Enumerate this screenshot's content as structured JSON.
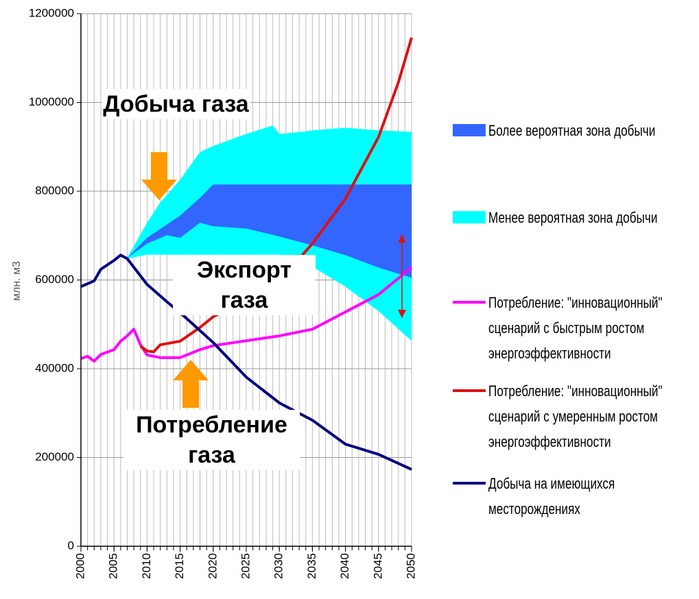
{
  "chart_data": {
    "type": "line",
    "y_label": "млн. м3",
    "xlim": [
      2000,
      2050
    ],
    "xticks": [
      2000,
      2005,
      2010,
      2015,
      2020,
      2025,
      2030,
      2035,
      2040,
      2045,
      2050
    ],
    "ylim": [
      0,
      1200000
    ],
    "yticks": [
      0,
      200000,
      400000,
      600000,
      800000,
      1000000,
      1200000
    ],
    "grid": true,
    "annotations": [
      "Добыча газа",
      "Экспорт газа",
      "Потребление газа"
    ],
    "series": [
      {
        "name": "Менее вероятная зона добычи",
        "type": "band",
        "color": "#00ffff",
        "x": [
          2007,
          2010,
          2012,
          2015,
          2018,
          2020,
          2025,
          2029,
          2030,
          2034,
          2035,
          2040,
          2045,
          2050
        ],
        "low": [
          648000,
          657000,
          657000,
          657000,
          657000,
          657000,
          657000,
          657000,
          657000,
          640000,
          630000,
          585000,
          530000,
          463000
        ],
        "high": [
          650000,
          729000,
          775000,
          826000,
          888000,
          902000,
          929000,
          948000,
          929000,
          935000,
          937000,
          943000,
          937000,
          934000
        ]
      },
      {
        "name": "Более вероятная зона добычи",
        "type": "band",
        "color": "#3366ff",
        "x": [
          2007,
          2010,
          2013,
          2015,
          2018,
          2020,
          2025,
          2030,
          2035,
          2040,
          2045,
          2050
        ],
        "low": [
          650000,
          682000,
          701000,
          695000,
          729000,
          721000,
          716000,
          698000,
          678000,
          656000,
          628000,
          605000
        ],
        "high": [
          650000,
          695000,
          725000,
          745000,
          785000,
          815000,
          815000,
          815000,
          815000,
          815000,
          815000,
          815000
        ]
      },
      {
        "name": "Потребление: \"инновационный\" сценарий с быстрым ростом энергоэффективности",
        "type": "line",
        "color": "#ff00ff",
        "x": [
          2000,
          2001,
          2002,
          2003,
          2005,
          2006,
          2007,
          2008,
          2009,
          2010,
          2012,
          2015,
          2018,
          2020,
          2025,
          2030,
          2035,
          2040,
          2045,
          2050
        ],
        "values": [
          423000,
          428000,
          417000,
          432000,
          443000,
          462000,
          474000,
          489000,
          454000,
          431000,
          425000,
          425000,
          443000,
          452000,
          463000,
          474000,
          489000,
          528000,
          567000,
          628000
        ]
      },
      {
        "name": "Потребление: \"инновационный\" сценарий с умеренным ростом энергоэффективности",
        "type": "line",
        "color": "#dd1111",
        "x": [
          2009,
          2010,
          2011,
          2012,
          2015,
          2018,
          2020,
          2025,
          2030,
          2035,
          2040,
          2045,
          2048,
          2050
        ],
        "values": [
          451000,
          440000,
          438000,
          454000,
          462000,
          493000,
          517000,
          555000,
          597000,
          682000,
          783000,
          922000,
          1045000,
          1146000
        ]
      },
      {
        "name": "Добыча на имеющихся месторождениях",
        "type": "line",
        "color": "#000080",
        "x": [
          2000,
          2002,
          2003,
          2005,
          2006,
          2007,
          2010,
          2013,
          2016,
          2020,
          2025,
          2030,
          2035,
          2040,
          2045,
          2050
        ],
        "values": [
          585000,
          598000,
          624000,
          644000,
          656000,
          648000,
          590000,
          551000,
          513000,
          459000,
          381000,
          323000,
          284000,
          230000,
          207000,
          173000
        ]
      }
    ]
  }
}
